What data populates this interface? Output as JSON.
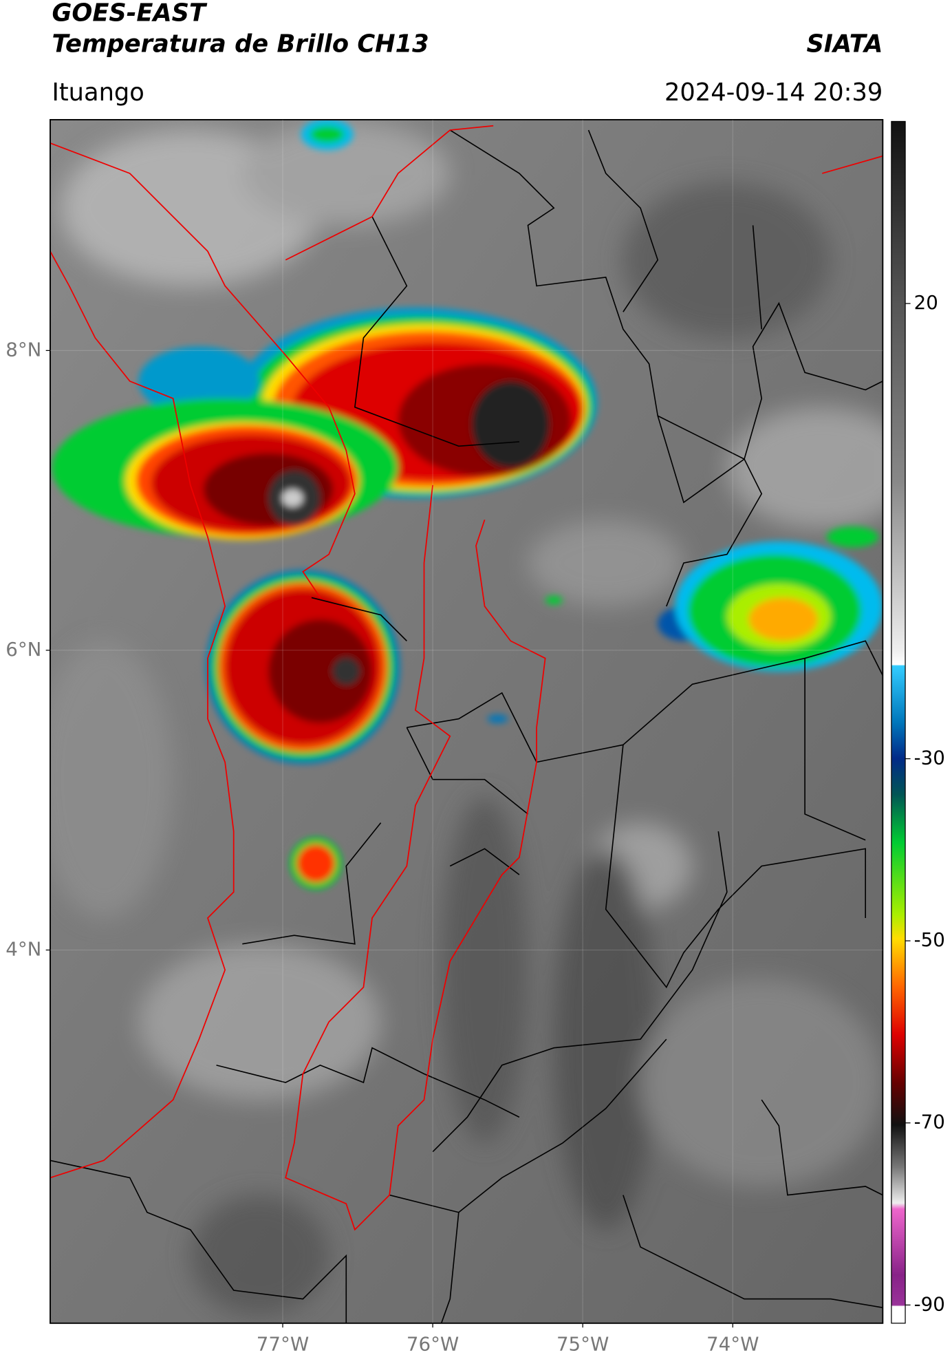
{
  "header": {
    "title": "GOES-EAST",
    "subtitle": "Temperatura de Brillo CH13",
    "brand": "SIATA",
    "location": "Ituango",
    "datetime": "2024-09-14 20:39"
  },
  "map": {
    "lon_range": [
      -78.55,
      -73.0
    ],
    "lat_range": [
      1.51,
      9.54
    ],
    "lon_ticks": [
      {
        "value": -77,
        "label": "77°W"
      },
      {
        "value": -76,
        "label": "76°W"
      },
      {
        "value": -75,
        "label": "75°W"
      },
      {
        "value": -74,
        "label": "74°W"
      }
    ],
    "lat_ticks": [
      {
        "value": 8,
        "label": "8°N"
      },
      {
        "value": 6,
        "label": "6°N"
      },
      {
        "value": 4,
        "label": "4°N"
      }
    ]
  },
  "colorbar": {
    "range": [
      -92,
      40
    ],
    "ticks": [
      20,
      -30,
      -50,
      -70,
      -90
    ]
  }
}
